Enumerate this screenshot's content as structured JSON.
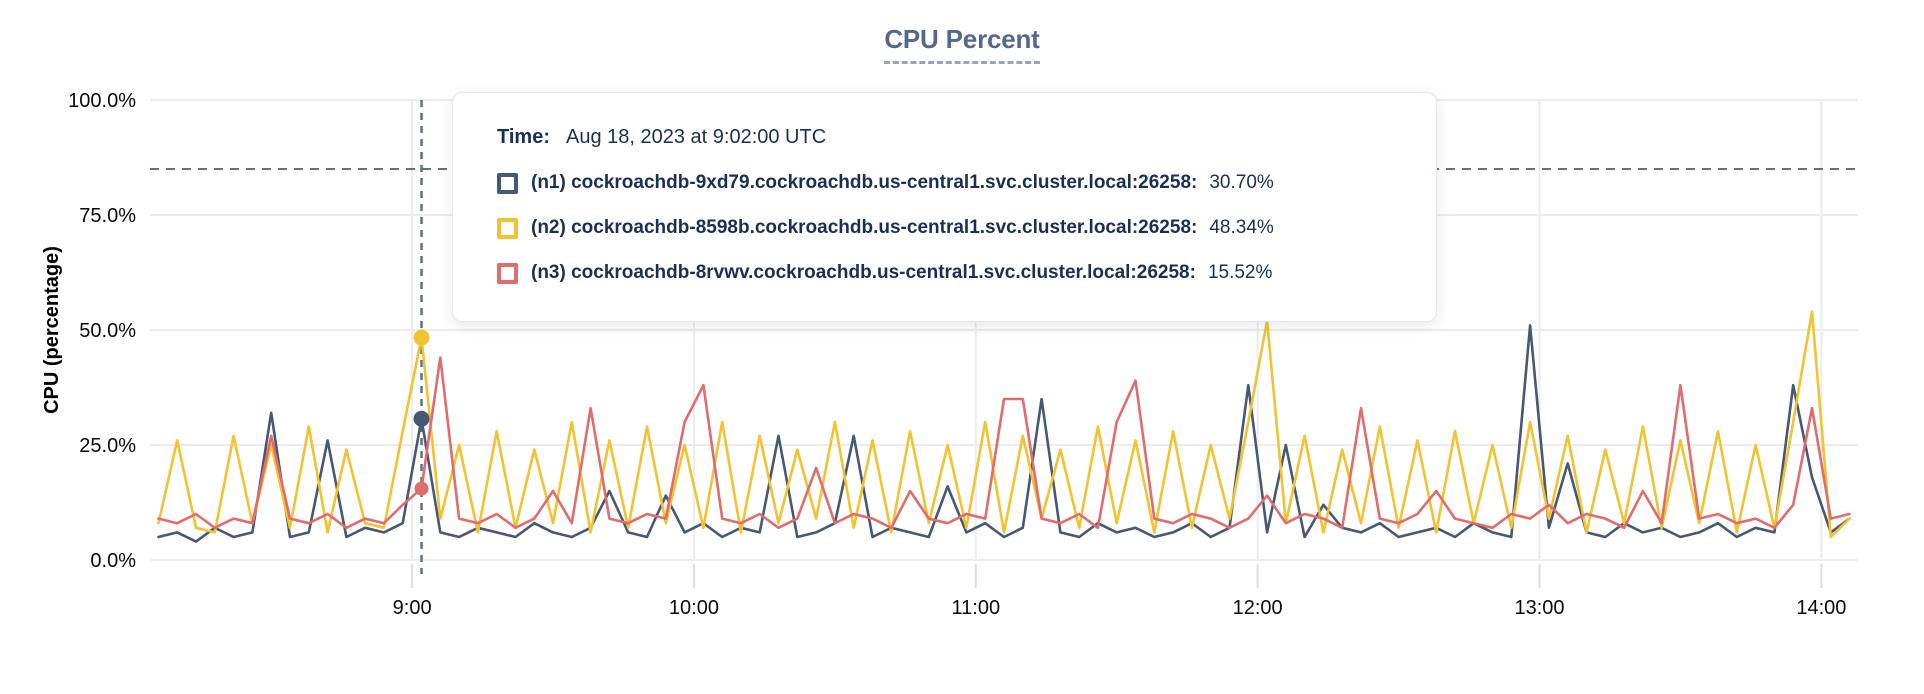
{
  "header": {
    "title": "CPU Percent"
  },
  "tooltip": {
    "time_label": "Time:",
    "time_value": "Aug 18, 2023 at 9:02:00 UTC",
    "rows": [
      {
        "name": "(n1) cockroachdb-9xd79.cockroachdb.us-central1.svc.cluster.local:26258:",
        "value": "30.70%",
        "color": "#475872"
      },
      {
        "name": "(n2) cockroachdb-8598b.cockroachdb.us-central1.svc.cluster.local:26258:",
        "value": "48.34%",
        "color": "#F2C230"
      },
      {
        "name": "(n3) cockroachdb-8rvwv.cockroachdb.us-central1.svc.cluster.local:26258:",
        "value": "15.52%",
        "color": "#E06C6C"
      }
    ]
  },
  "colors": {
    "series_n1": "#475872",
    "series_n2": "#F2C230",
    "series_n3": "#E06C6C",
    "grid": "#ECECEC",
    "tick": "#DDDDDD",
    "axis_text": "#0A0A0A",
    "dashed_guides": "#5D7186",
    "title_text": "#56688A",
    "tooltip_text": "#1B2F55"
  },
  "chart_data": {
    "type": "line",
    "title": "CPU Percent",
    "xlabel": "",
    "ylabel": "CPU (percentage)",
    "ylim": [
      0,
      100
    ],
    "xlim_hours": [
      8.07,
      14.13
    ],
    "grid": true,
    "yticks": {
      "values": [
        0,
        25,
        50,
        75,
        100
      ],
      "labels": [
        "0.0%",
        "25.0%",
        "50.0%",
        "75.0%",
        "100.0%"
      ]
    },
    "xticks": {
      "values": [
        9,
        10,
        11,
        12,
        13,
        14
      ],
      "labels": [
        "9:00",
        "10:00",
        "11:00",
        "12:00",
        "13:00",
        "14:00"
      ]
    },
    "threshold_line": {
      "value": 85,
      "style": "dashed"
    },
    "hover": {
      "t_hours": 9.0333,
      "time_text": "Aug 18, 2023 at 9:02:00 UTC",
      "points": [
        {
          "series": "n1",
          "value": 30.7
        },
        {
          "series": "n2",
          "value": 48.34
        },
        {
          "series": "n3",
          "value": 15.52
        }
      ]
    },
    "sampling": {
      "t0_hours": 8.1,
      "dt_hours": 0.0666667
    },
    "series": [
      {
        "name": "(n1) cockroachdb-9xd79.cockroachdb.us-central1.svc.cluster.local:26258",
        "color": "#475872",
        "values": [
          5,
          6,
          4,
          7,
          5,
          6,
          32,
          5,
          6,
          26,
          5,
          7,
          6,
          8,
          30.7,
          6,
          5,
          7,
          6,
          5,
          8,
          6,
          5,
          7,
          15,
          6,
          5,
          14,
          6,
          8,
          5,
          7,
          6,
          27,
          5,
          6,
          8,
          27,
          5,
          7,
          6,
          5,
          16,
          6,
          8,
          5,
          7,
          35,
          6,
          5,
          8,
          6,
          7,
          5,
          6,
          8,
          5,
          7,
          38,
          6,
          25,
          5,
          12,
          7,
          6,
          8,
          5,
          6,
          7,
          5,
          8,
          6,
          5,
          51,
          7,
          21,
          6,
          5,
          8,
          6,
          7,
          5,
          6,
          8,
          5,
          7,
          6,
          38,
          18,
          6,
          9
        ]
      },
      {
        "name": "(n2) cockroachdb-8598b.cockroachdb.us-central1.svc.cluster.local:26258",
        "color": "#F2C230",
        "values": [
          8,
          26,
          7,
          6,
          27,
          8,
          25,
          7,
          29,
          6,
          24,
          8,
          7,
          28,
          48.34,
          9,
          25,
          6,
          28,
          7,
          24,
          8,
          30,
          6,
          26,
          7,
          29,
          8,
          25,
          7,
          30,
          6,
          27,
          8,
          24,
          9,
          30,
          7,
          26,
          6,
          28,
          8,
          25,
          7,
          30,
          6,
          27,
          9,
          24,
          7,
          29,
          8,
          26,
          6,
          28,
          7,
          25,
          9,
          30,
          52,
          8,
          27,
          6,
          24,
          8,
          29,
          7,
          26,
          6,
          28,
          8,
          25,
          7,
          30,
          9,
          27,
          6,
          24,
          8,
          29,
          7,
          26,
          8,
          28,
          6,
          25,
          7,
          30,
          54,
          5,
          9
        ]
      },
      {
        "name": "(n3) cockroachdb-8rvwv.cockroachdb.us-central1.svc.cluster.local:26258",
        "color": "#E06C6C",
        "values": [
          9,
          8,
          10,
          7,
          9,
          8,
          27,
          9,
          8,
          10,
          7,
          9,
          8,
          12,
          15.52,
          44,
          9,
          8,
          10,
          7,
          9,
          15,
          8,
          33,
          9,
          8,
          10,
          9,
          30,
          38,
          9,
          8,
          10,
          7,
          9,
          20,
          8,
          10,
          9,
          7,
          15,
          9,
          8,
          10,
          9,
          35,
          35,
          9,
          8,
          10,
          7,
          30,
          39,
          9,
          8,
          10,
          9,
          7,
          9,
          14,
          8,
          10,
          9,
          7,
          33,
          9,
          8,
          10,
          15,
          9,
          8,
          7,
          10,
          9,
          12,
          8,
          10,
          9,
          7,
          15,
          8,
          38,
          9,
          10,
          8,
          9,
          7,
          12,
          33,
          9,
          10
        ]
      }
    ]
  }
}
